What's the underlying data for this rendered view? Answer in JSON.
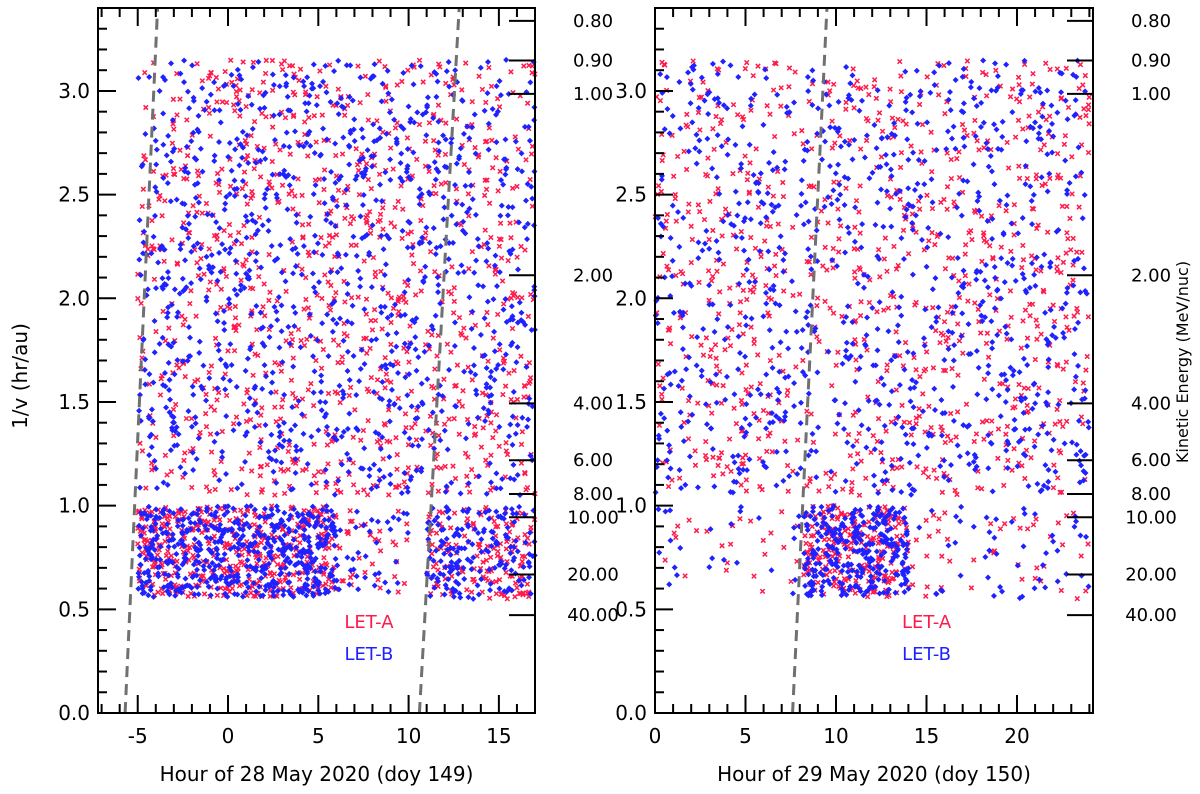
{
  "figure": {
    "y_label": "1/v (hr/au)",
    "right_label": "Kinetic Energy (MeV/nuc)",
    "colors": {
      "let_a": "#ff1a4b",
      "let_b": "#1f22ff",
      "guide": "#707070"
    }
  },
  "chart_data": [
    {
      "type": "scatter",
      "title": "",
      "xlabel": "Hour of 28 May 2020 (doy 149)",
      "ylabel": "1/v (hr/au)",
      "right_axis_label": "Kinetic Energy (MeV/nuc)",
      "xlim": [
        -7.2,
        17
      ],
      "ylim": [
        0,
        3.4
      ],
      "x_ticks": [
        -5,
        0,
        5,
        10,
        15
      ],
      "x_tick_labels": [
        "-5",
        "0",
        "5",
        "10",
        "15"
      ],
      "y_ticks": [
        0.0,
        0.5,
        1.0,
        1.5,
        2.0,
        2.5,
        3.0
      ],
      "y_tick_labels": [
        "0.0",
        "0.5",
        "1.0",
        "1.5",
        "2.0",
        "2.5",
        "3.0"
      ],
      "energy_ticks_y": [
        3.338,
        3.147,
        2.986,
        2.111,
        1.493,
        1.219,
        1.056,
        0.944,
        0.668,
        0.472
      ],
      "energy_tick_labels": [
        "0.80",
        "0.90",
        "1.00",
        "2.00",
        "4.00",
        "6.00",
        "8.00",
        "10.00",
        "20.00",
        "40.00"
      ],
      "legend": [
        "LET-A",
        "LET-B"
      ],
      "legend_position": "bottom-right",
      "guide_lines": [
        {
          "x1": -5.7,
          "y1": 0,
          "x2": -3.9,
          "y2": 3.4
        },
        {
          "x1": 10.6,
          "y1": 0,
          "x2": 12.8,
          "y2": 3.4
        }
      ],
      "series": [
        {
          "name": "LET-A",
          "marker": "x",
          "regions": [
            {
              "x": [
                -5.0,
                17
              ],
              "y": [
                1.05,
                3.15
              ],
              "count": 950
            },
            {
              "x": [
                -5.0,
                6.0
              ],
              "y": [
                0.56,
                1.0
              ],
              "count": 420
            },
            {
              "x": [
                6.0,
                10.0
              ],
              "y": [
                0.58,
                0.98
              ],
              "count": 35
            },
            {
              "x": [
                11.0,
                17
              ],
              "y": [
                0.55,
                1.0
              ],
              "count": 150
            }
          ]
        },
        {
          "name": "LET-B",
          "marker": "diamond",
          "regions": [
            {
              "x": [
                -5.0,
                17
              ],
              "y": [
                1.05,
                3.15
              ],
              "count": 1050
            },
            {
              "x": [
                -5.0,
                6.0
              ],
              "y": [
                0.56,
                1.0
              ],
              "count": 520
            },
            {
              "x": [
                6.0,
                10.0
              ],
              "y": [
                0.58,
                0.98
              ],
              "count": 35
            },
            {
              "x": [
                11.0,
                17
              ],
              "y": [
                0.55,
                1.0
              ],
              "count": 170
            }
          ]
        }
      ]
    },
    {
      "type": "scatter",
      "title": "",
      "xlabel": "Hour of 29 May 2020 (doy 150)",
      "ylabel": "",
      "right_axis_label": "Kinetic Energy (MeV/nuc)",
      "xlim": [
        0,
        24.2
      ],
      "ylim": [
        0,
        3.4
      ],
      "x_ticks": [
        0,
        5,
        10,
        15,
        20
      ],
      "x_tick_labels": [
        "0",
        "5",
        "10",
        "15",
        "20"
      ],
      "y_ticks": [
        0.0,
        0.5,
        1.0,
        1.5,
        2.0,
        2.5,
        3.0
      ],
      "y_tick_labels": [
        "0.0",
        "0.5",
        "1.0",
        "1.5",
        "2.0",
        "2.5",
        "3.0"
      ],
      "energy_ticks_y": [
        3.338,
        3.147,
        2.986,
        2.111,
        1.493,
        1.219,
        1.056,
        0.944,
        0.668,
        0.472
      ],
      "energy_tick_labels": [
        "0.80",
        "0.90",
        "1.00",
        "2.00",
        "4.00",
        "6.00",
        "8.00",
        "10.00",
        "20.00",
        "40.00"
      ],
      "legend": [
        "LET-A",
        "LET-B"
      ],
      "legend_position": "bottom-right",
      "guide_lines": [
        {
          "x1": 7.6,
          "y1": 0,
          "x2": 9.5,
          "y2": 3.4
        }
      ],
      "series": [
        {
          "name": "LET-A",
          "marker": "x",
          "regions": [
            {
              "x": [
                0,
                24
              ],
              "y": [
                1.05,
                3.15
              ],
              "count": 850
            },
            {
              "x": [
                8.2,
                14.0
              ],
              "y": [
                0.56,
                1.0
              ],
              "count": 220
            },
            {
              "x": [
                0,
                8.0
              ],
              "y": [
                0.55,
                1.0
              ],
              "count": 25
            },
            {
              "x": [
                14.0,
                24
              ],
              "y": [
                0.55,
                1.0
              ],
              "count": 45
            }
          ]
        },
        {
          "name": "LET-B",
          "marker": "diamond",
          "regions": [
            {
              "x": [
                0,
                24
              ],
              "y": [
                1.05,
                3.15
              ],
              "count": 900
            },
            {
              "x": [
                8.2,
                14.0
              ],
              "y": [
                0.56,
                1.0
              ],
              "count": 280
            },
            {
              "x": [
                0,
                8.0
              ],
              "y": [
                0.55,
                1.0
              ],
              "count": 25
            },
            {
              "x": [
                14.0,
                24
              ],
              "y": [
                0.55,
                1.0
              ],
              "count": 50
            }
          ]
        }
      ]
    }
  ]
}
